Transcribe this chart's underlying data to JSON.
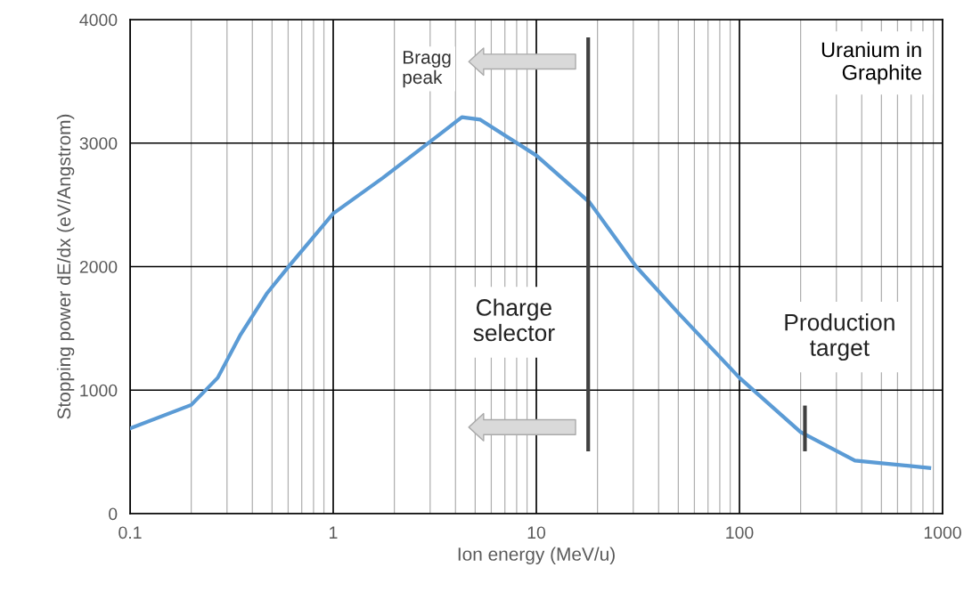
{
  "chart_data": {
    "type": "line",
    "xlabel": "Ion energy (MeV/u)",
    "ylabel": "Stopping power dE/dx (eV/Angstrom)",
    "log": "x",
    "xlim": [
      0.1,
      1000
    ],
    "xticks": [
      0.1,
      1,
      10,
      100,
      1000
    ],
    "ylim": [
      0,
      4000
    ],
    "yticks": [
      0,
      1000,
      2000,
      3000,
      4000
    ],
    "grid": true,
    "marker": "none",
    "line_style": "solid",
    "series": [
      {
        "color": "#5b9bd5",
        "x": [
          0.1,
          0.2,
          0.27,
          0.35,
          0.47,
          0.61,
          1,
          1.76,
          3.4,
          4.3,
          5.3,
          10,
          18.3,
          31,
          49,
          100,
          200,
          370,
          860
        ],
        "values": [
          690,
          880,
          1100,
          1450,
          1780,
          2010,
          2430,
          2720,
          3080,
          3210,
          3190,
          2900,
          2520,
          2000,
          1640,
          1100,
          660,
          430,
          370
        ]
      }
    ],
    "ref_lines": [
      {
        "axis": "x",
        "value": 18,
        "label": "Charge selector",
        "color": "#404040"
      },
      {
        "axis": "x",
        "value": 210,
        "label": "Production target",
        "color": "#404040"
      }
    ],
    "annotations": [
      {
        "text": "Bragg peak",
        "x": 4.4,
        "y": 3200
      },
      "Uranium in Graphite"
    ]
  }
}
